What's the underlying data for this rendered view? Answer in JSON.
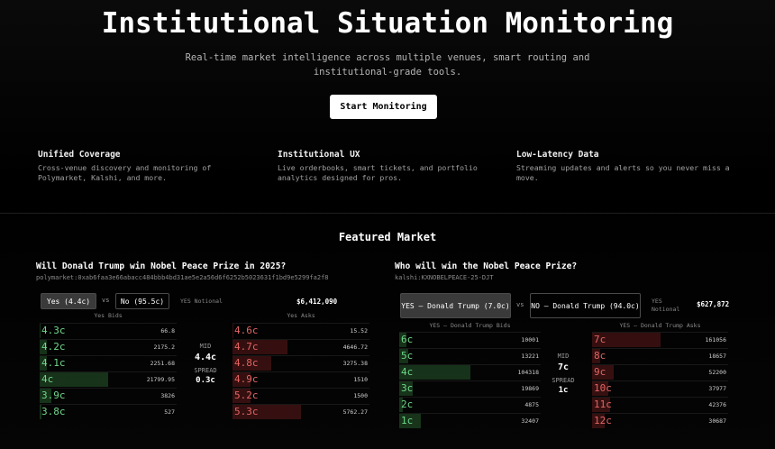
{
  "hero": {
    "title": "Institutional Situation Monitoring",
    "subtitle": "Real-time market intelligence across multiple venues, smart routing and institutional-grade tools.",
    "button": "Start Monitoring"
  },
  "features": [
    {
      "title": "Unified Coverage",
      "text": "Cross-venue discovery and monitoring of Polymarket, Kalshi, and more."
    },
    {
      "title": "Institutional UX",
      "text": "Live orderbooks, smart tickets, and portfolio analytics designed for pros."
    },
    {
      "title": "Low-Latency Data",
      "text": "Streaming updates and alerts so you never miss a move."
    }
  ],
  "featured": {
    "heading": "Featured Market",
    "markets": [
      {
        "question": "Will Donald Trump win Nobel Peace Prize in 2025?",
        "id": "polymarket:0xab6faa3e66abacc484bbb4bd31ae5e2a56d6f6252b5023631f1bd9e5299fa2f8",
        "yes_button": "Yes (4.4c)",
        "vs": "vs",
        "no_button": "No (95.5c)",
        "notional_label": "YES Notional",
        "notional": "$6,412,090",
        "bids_header": "Yes Bids",
        "asks_header": "Yes Asks",
        "bids": [
          {
            "price": "4.3c",
            "size": "66.8"
          },
          {
            "price": "4.2c",
            "size": "2175.2"
          },
          {
            "price": "4.1c",
            "size": "2251.68"
          },
          {
            "price": "4c",
            "size": "21799.95"
          },
          {
            "price": "3.9c",
            "size": "3826"
          },
          {
            "price": "3.8c",
            "size": "527"
          }
        ],
        "asks": [
          {
            "price": "4.6c",
            "size": "15.52"
          },
          {
            "price": "4.7c",
            "size": "4646.72"
          },
          {
            "price": "4.8c",
            "size": "3275.38"
          },
          {
            "price": "4.9c",
            "size": "1510"
          },
          {
            "price": "5.2c",
            "size": "1500"
          },
          {
            "price": "5.3c",
            "size": "5762.27"
          }
        ],
        "mid_label": "MID",
        "mid": "4.4c",
        "spread_label": "SPREAD",
        "spread": "0.3c"
      },
      {
        "question": "Who will win the Nobel Peace Prize?",
        "id": "kalshi:KXNOBELPEACE-25-DJT",
        "yes_button": "YES — Donald Trump (7.0c)",
        "vs": "vs",
        "no_button": "NO — Donald Trump (94.0c)",
        "notional_label": "YES Notional",
        "notional": "$627,872",
        "bids_header": "YES — Donald Trump Bids",
        "asks_header": "YES — Donald Trump Asks",
        "bids": [
          {
            "price": "6c",
            "size": "10001"
          },
          {
            "price": "5c",
            "size": "13221"
          },
          {
            "price": "4c",
            "size": "104318"
          },
          {
            "price": "3c",
            "size": "19869"
          },
          {
            "price": "2c",
            "size": "4875"
          },
          {
            "price": "1c",
            "size": "32407"
          }
        ],
        "asks": [
          {
            "price": "7c",
            "size": "161056"
          },
          {
            "price": "8c",
            "size": "18657"
          },
          {
            "price": "9c",
            "size": "52200"
          },
          {
            "price": "10c",
            "size": "37977"
          },
          {
            "price": "11c",
            "size": "42376"
          },
          {
            "price": "12c",
            "size": "30687"
          }
        ],
        "mid_label": "MID",
        "mid": "7c",
        "spread_label": "SPREAD",
        "spread": "1c"
      }
    ]
  }
}
